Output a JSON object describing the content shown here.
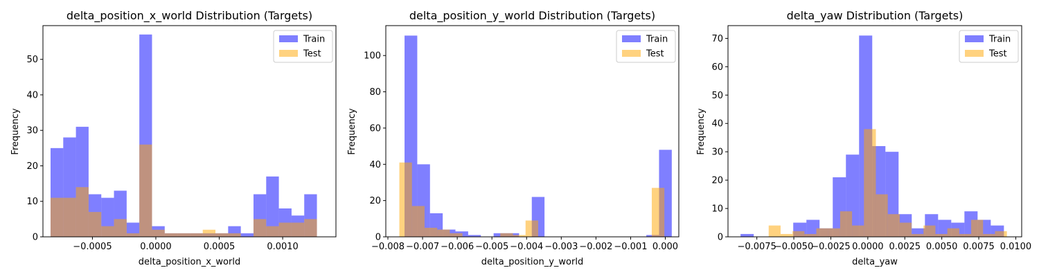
{
  "colors": {
    "train": "#0000ff",
    "test": "#ffa500",
    "axis": "#000000",
    "legend_border": "#cccccc"
  },
  "chart_data": [
    {
      "type": "histogram",
      "title": "delta_position_x_world Distribution (Targets)",
      "xlabel": "delta_position_x_world",
      "ylabel": "Frequency",
      "xlim": [
        -0.00089,
        0.00142
      ],
      "ylim": [
        0,
        59.5
      ],
      "xticks": [
        -0.0005,
        0.0,
        0.0005,
        0.001
      ],
      "xtick_labels": [
        "−0.0005",
        "0.0000",
        "0.0005",
        "0.0010"
      ],
      "yticks": [
        0,
        10,
        20,
        30,
        40,
        50
      ],
      "ytick_labels": [
        "0",
        "10",
        "20",
        "30",
        "40",
        "50"
      ],
      "legend": {
        "position": "top-right",
        "entries": [
          "Train",
          "Test"
        ]
      },
      "series": [
        {
          "name": "Train",
          "bin_width": 0.0001,
          "edges_start": -0.00083,
          "values": [
            25,
            28,
            31,
            12,
            11,
            13,
            4,
            57,
            3,
            1,
            1,
            1,
            1,
            1,
            3,
            1,
            12,
            17,
            8,
            6,
            12
          ]
        },
        {
          "name": "Test",
          "bin_width": 0.0001,
          "edges_start": -0.00083,
          "values": [
            11,
            11,
            14,
            7,
            3,
            5,
            1,
            26,
            2,
            1,
            1,
            1,
            2,
            1,
            1,
            0,
            5,
            3,
            4,
            4,
            5
          ]
        }
      ]
    },
    {
      "type": "histogram",
      "title": "delta_position_y_world Distribution (Targets)",
      "xlabel": "delta_position_y_world",
      "ylabel": "Frequency",
      "xlim": [
        -0.00806,
        0.00039
      ],
      "ylim": [
        0,
        116.5
      ],
      "xticks": [
        -0.008,
        -0.007,
        -0.006,
        -0.005,
        -0.004,
        -0.003,
        -0.002,
        -0.001,
        0.0
      ],
      "xtick_labels": [
        "−0.008",
        "−0.007",
        "−0.006",
        "−0.005",
        "−0.004",
        "−0.003",
        "−0.002",
        "−0.001",
        "0.000"
      ],
      "yticks": [
        0,
        20,
        40,
        60,
        80,
        100
      ],
      "ytick_labels": [
        "0",
        "20",
        "40",
        "60",
        "80",
        "100"
      ],
      "legend": {
        "position": "top-right",
        "entries": [
          "Train",
          "Test"
        ]
      },
      "series": [
        {
          "name": "Train",
          "bin_width": 0.000367,
          "edges_start": -0.00752,
          "values": [
            111,
            40,
            13,
            4,
            3,
            1,
            0,
            2,
            2,
            0,
            22,
            0,
            0,
            0,
            0,
            0,
            0,
            0,
            0,
            1,
            48
          ]
        },
        {
          "name": "Test",
          "bin_width": 0.000364,
          "edges_start": -0.00767,
          "values": [
            41,
            17,
            5,
            4,
            2,
            0,
            0,
            0,
            2,
            1,
            9,
            0,
            0,
            0,
            0,
            0,
            0,
            0,
            0,
            0,
            27
          ]
        }
      ]
    },
    {
      "type": "histogram",
      "title": "delta_yaw Distribution (Targets)",
      "xlabel": "delta_yaw",
      "ylabel": "Frequency",
      "xlim": [
        -0.00945,
        0.0104
      ],
      "ylim": [
        0,
        74.5
      ],
      "xticks": [
        -0.0075,
        -0.005,
        -0.0025,
        0.0,
        0.0025,
        0.005,
        0.0075,
        0.01
      ],
      "xtick_labels": [
        "−0.0075",
        "−0.0050",
        "−0.0025",
        "0.0000",
        "0.0025",
        "0.0050",
        "0.0075",
        "0.0100"
      ],
      "yticks": [
        0,
        10,
        20,
        30,
        40,
        50,
        60,
        70
      ],
      "ytick_labels": [
        "0",
        "10",
        "20",
        "30",
        "40",
        "50",
        "60",
        "70"
      ],
      "legend": {
        "position": "top-right",
        "entries": [
          "Train",
          "Test"
        ]
      },
      "series": [
        {
          "name": "Train",
          "bin_width": 0.00089,
          "edges_start": -0.0086,
          "values": [
            1,
            0,
            0,
            0,
            5,
            6,
            3,
            21,
            29,
            71,
            32,
            30,
            8,
            3,
            8,
            6,
            5,
            9,
            6,
            4
          ]
        },
        {
          "name": "Test",
          "bin_width": 0.000805,
          "edges_start": -0.0067,
          "values": [
            4,
            1,
            2,
            1,
            3,
            3,
            9,
            4,
            38,
            15,
            8,
            5,
            1,
            4,
            1,
            3,
            1,
            6,
            1,
            2
          ]
        }
      ]
    }
  ]
}
